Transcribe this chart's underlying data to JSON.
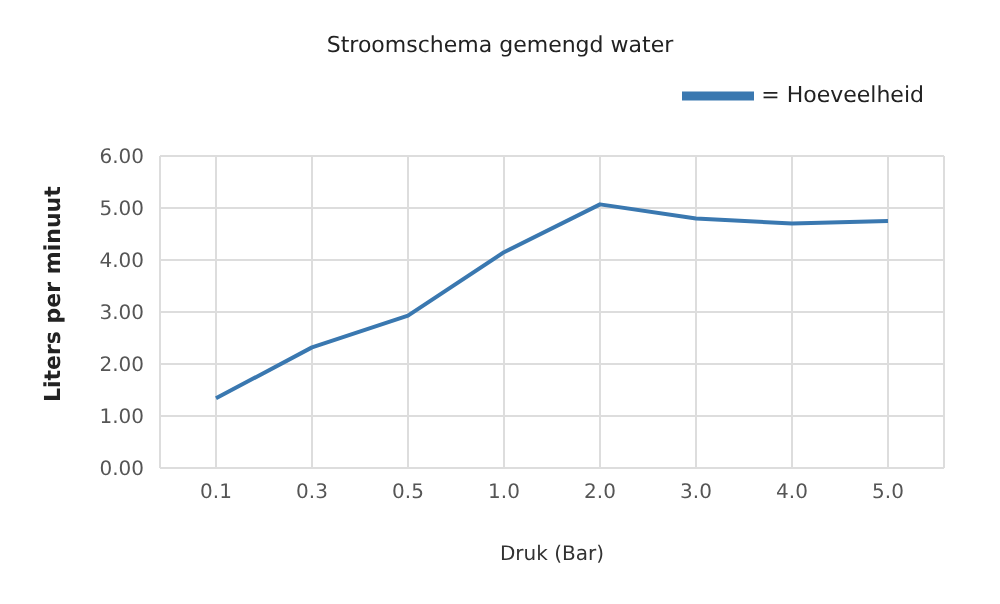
{
  "chart_data": {
    "type": "line",
    "title": "Stroomschema gemengd water",
    "xlabel": "Druk (Bar)",
    "ylabel": "Liters per minuut",
    "categories": [
      "0.1",
      "0.3",
      "0.5",
      "1.0",
      "2.0",
      "3.0",
      "4.0",
      "5.0"
    ],
    "series": [
      {
        "name": "= Hoeveelheid",
        "color": "#3a78b0",
        "values": [
          1.34,
          2.32,
          2.93,
          4.15,
          5.07,
          4.8,
          4.7,
          4.75
        ]
      }
    ],
    "ylim": [
      0,
      6
    ],
    "yticks": [
      {
        "value": 0,
        "label": "0.00"
      },
      {
        "value": 1,
        "label": "1.00"
      },
      {
        "value": 2,
        "label": "2.00"
      },
      {
        "value": 3,
        "label": "3.00"
      },
      {
        "value": 4,
        "label": "4.00"
      },
      {
        "value": 5,
        "label": "5.00"
      },
      {
        "value": 6,
        "label": "6.00"
      }
    ],
    "grid": true,
    "legend": "top right",
    "marker": "none",
    "line_style": "solid"
  }
}
